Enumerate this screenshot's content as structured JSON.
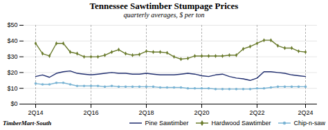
{
  "chart_data": {
    "type": "line",
    "title": "Tennessee Sawtimber Stumpage Prices",
    "subtitle": "quarterly averages, $ per ton",
    "caption": "TimberMart-South",
    "categories": [
      "2Q14",
      null,
      null,
      null,
      null,
      null,
      null,
      null,
      "2Q16",
      null,
      null,
      null,
      null,
      null,
      null,
      null,
      "2Q18",
      null,
      null,
      null,
      null,
      null,
      null,
      null,
      "2Q20",
      null,
      null,
      null,
      null,
      null,
      null,
      null,
      "2Q22",
      null,
      null,
      null,
      null,
      null,
      null,
      "2Q24"
    ],
    "series": [
      {
        "name": "Pine Sawtimber",
        "color": "#1f2d6e",
        "values": [
          17.5,
          18.5,
          17.0,
          19.5,
          20.5,
          21.0,
          19.5,
          19.0,
          18.5,
          19.0,
          19.5,
          20.0,
          19.5,
          19.5,
          19.0,
          19.0,
          19.5,
          19.0,
          18.5,
          18.5,
          18.5,
          19.0,
          19.5,
          19.0,
          18.0,
          17.5,
          18.5,
          19.0,
          17.5,
          16.5,
          16.0,
          15.0,
          16.5,
          20.5,
          20.5,
          20.0,
          19.5,
          18.5,
          18.0,
          17.5
        ]
      },
      {
        "name": "Hardwood Sawtimber",
        "color": "#6b7c2e",
        "marker": "diamond",
        "values": [
          38.5,
          32.0,
          30.5,
          38.5,
          38.5,
          33.0,
          32.0,
          30.0,
          30.0,
          30.0,
          31.0,
          33.0,
          34.5,
          32.0,
          31.0,
          31.5,
          33.5,
          33.0,
          33.0,
          32.5,
          30.0,
          28.5,
          29.0,
          30.5,
          30.5,
          30.5,
          30.5,
          30.5,
          31.0,
          31.0,
          35.0,
          36.5,
          38.5,
          40.5,
          40.5,
          37.0,
          35.5,
          35.5,
          33.5,
          33.0
        ]
      },
      {
        "name": "Chip-n-saw",
        "color": "#7ab4d4",
        "marker": "circle",
        "values": [
          13.0,
          12.5,
          12.5,
          13.5,
          13.5,
          12.5,
          11.5,
          11.5,
          11.5,
          11.5,
          11.0,
          11.5,
          11.0,
          11.0,
          11.0,
          11.0,
          11.0,
          11.0,
          10.5,
          10.5,
          10.5,
          10.5,
          10.0,
          10.0,
          10.0,
          10.0,
          9.5,
          9.5,
          9.5,
          9.5,
          9.5,
          9.5,
          10.0,
          10.0,
          10.5,
          11.0,
          11.0,
          11.0,
          11.0,
          11.0
        ]
      }
    ],
    "ylim": [
      0,
      50
    ],
    "yticks": [
      {
        "value": 0,
        "label": "$0"
      },
      {
        "value": 10,
        "label": "$10"
      },
      {
        "value": 20,
        "label": "$20"
      },
      {
        "value": 30,
        "label": "$30"
      },
      {
        "value": 40,
        "label": "$40"
      },
      {
        "value": 50,
        "label": "$50"
      }
    ],
    "grid": true,
    "legend": "bottom"
  }
}
